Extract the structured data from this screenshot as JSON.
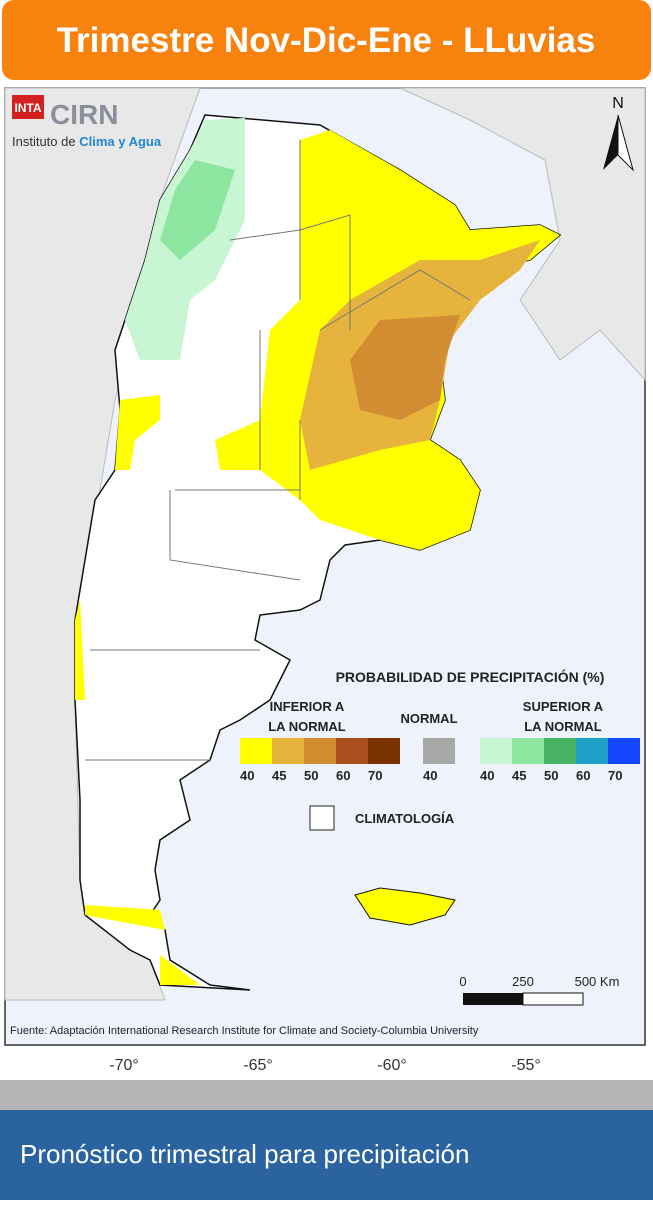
{
  "header": {
    "title": "Trimestre Nov-Dic-Ene - LLuvias"
  },
  "map": {
    "logo": {
      "inta": "INTA",
      "cirn": "CIRN",
      "institute": "Instituto de",
      "institute_highlight": "Clima y Agua"
    },
    "north": "N",
    "legend": {
      "title": "PROBABILIDAD DE PRECIPITACIÓN (%)",
      "groups": [
        {
          "label_lines": [
            "INFERIOR A",
            "LA NORMAL"
          ],
          "classes": [
            {
              "value": "40",
              "color": "#ffff00"
            },
            {
              "value": "45",
              "color": "#e6b43c"
            },
            {
              "value": "50",
              "color": "#d28c32"
            },
            {
              "value": "60",
              "color": "#aa501e"
            },
            {
              "value": "70",
              "color": "#7a3200"
            }
          ]
        },
        {
          "label_lines": [
            "NORMAL"
          ],
          "classes": [
            {
              "value": "40",
              "color": "#a8a8a8"
            }
          ]
        },
        {
          "label_lines": [
            "SUPERIOR A",
            "LA NORMAL"
          ],
          "classes": [
            {
              "value": "40",
              "color": "#c8f5d2"
            },
            {
              "value": "45",
              "color": "#8ce6a0"
            },
            {
              "value": "50",
              "color": "#46b464"
            },
            {
              "value": "60",
              "color": "#1ea0c8"
            },
            {
              "value": "70",
              "color": "#1446ff"
            }
          ]
        }
      ],
      "climatology": "CLIMATOLOGÍA"
    },
    "scale": {
      "labels": [
        "0",
        "250",
        "500 Km"
      ]
    },
    "source": "Fuente: Adaptación International Research Institute for Climate and Society-Columbia University",
    "longitude_labels": [
      "-70°",
      "-65°",
      "-60°",
      "-55°"
    ]
  },
  "footer": {
    "text": "Pronóstico trimestral para precipitación"
  }
}
